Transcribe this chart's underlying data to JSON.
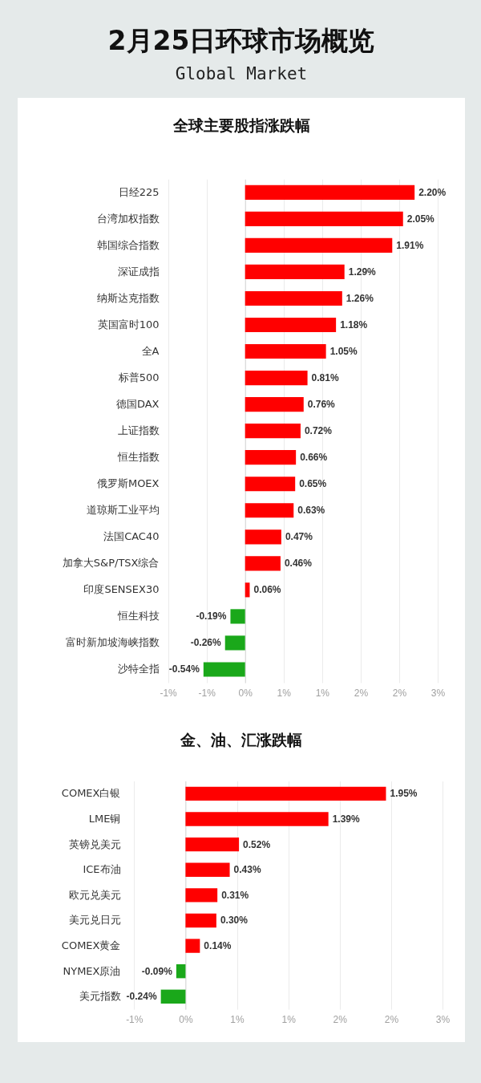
{
  "chart_data": [
    {
      "type": "other",
      "title": "2月25日环球市场概览",
      "subtitle": "Global Market"
    },
    {
      "type": "bar",
      "orientation": "horizontal",
      "title": "全球主要股指涨跌幅",
      "categories": [
        "日经225",
        "台湾加权指数",
        "韩国综合指数",
        "深证成指",
        "纳斯达克指数",
        "英国富时100",
        "全A",
        "标普500",
        "德国DAX",
        "上证指数",
        "恒生指数",
        "俄罗斯MOEX",
        "道琼斯工业平均",
        "法国CAC40",
        "加拿大S&P/TSX综合",
        "印度SENSEX30",
        "恒生科技",
        "富时新加坡海峡指数",
        "沙特全指"
      ],
      "values": [
        2.2,
        2.05,
        1.91,
        1.29,
        1.26,
        1.18,
        1.05,
        0.81,
        0.76,
        0.72,
        0.66,
        0.65,
        0.63,
        0.47,
        0.46,
        0.06,
        -0.19,
        -0.26,
        -0.54
      ],
      "value_labels": [
        "2.20%",
        "2.05%",
        "1.91%",
        "1.29%",
        "1.26%",
        "1.18%",
        "1.05%",
        "0.81%",
        "0.76%",
        "0.72%",
        "0.66%",
        "0.65%",
        "0.63%",
        "0.47%",
        "0.46%",
        "0.06%",
        "-0.19%",
        "-0.26%",
        "-0.54%"
      ],
      "colors": [
        "#ff0000",
        "#ff0000",
        "#ff0000",
        "#ff0000",
        "#ff0000",
        "#ff0000",
        "#ff0000",
        "#ff0000",
        "#ff0000",
        "#ff0000",
        "#ff0000",
        "#ff0000",
        "#ff0000",
        "#ff0000",
        "#ff0000",
        "#ff0000",
        "#1aa81a",
        "#1aa81a",
        "#1aa81a"
      ],
      "xlim": [
        -1,
        2.5
      ],
      "xticks": [
        {
          "value": -1,
          "label": "-1%"
        },
        {
          "value": -0.5,
          "label": "-1%"
        },
        {
          "value": 0,
          "label": "0%"
        },
        {
          "value": 0.5,
          "label": "1%"
        },
        {
          "value": 1,
          "label": "1%"
        },
        {
          "value": 1.5,
          "label": "2%"
        },
        {
          "value": 2,
          "label": "2%"
        },
        {
          "value": 2.5,
          "label": "3%"
        }
      ],
      "grid": "x"
    },
    {
      "type": "bar",
      "orientation": "horizontal",
      "title": "金、油、汇涨跌幅",
      "categories": [
        "COMEX白银",
        "LME铜",
        "英镑兑美元",
        "ICE布油",
        "欧元兑美元",
        "美元兑日元",
        "COMEX黄金",
        "NYMEX原油",
        "美元指数"
      ],
      "values": [
        1.95,
        1.39,
        0.52,
        0.43,
        0.31,
        0.3,
        0.14,
        -0.09,
        -0.24
      ],
      "value_labels": [
        "1.95%",
        "1.39%",
        "0.52%",
        "0.43%",
        "0.31%",
        "0.30%",
        "0.14%",
        "-0.09%",
        "-0.24%"
      ],
      "colors": [
        "#ff0000",
        "#ff0000",
        "#ff0000",
        "#ff0000",
        "#ff0000",
        "#ff0000",
        "#ff0000",
        "#1aa81a",
        "#1aa81a"
      ],
      "xlim": [
        -0.5,
        2.5
      ],
      "xticks": [
        {
          "value": -0.5,
          "label": "-1%"
        },
        {
          "value": 0,
          "label": "0%"
        },
        {
          "value": 0.5,
          "label": "1%"
        },
        {
          "value": 1,
          "label": "1%"
        },
        {
          "value": 1.5,
          "label": "2%"
        },
        {
          "value": 2,
          "label": "2%"
        },
        {
          "value": 2.5,
          "label": "3%"
        }
      ],
      "grid": "x"
    }
  ]
}
